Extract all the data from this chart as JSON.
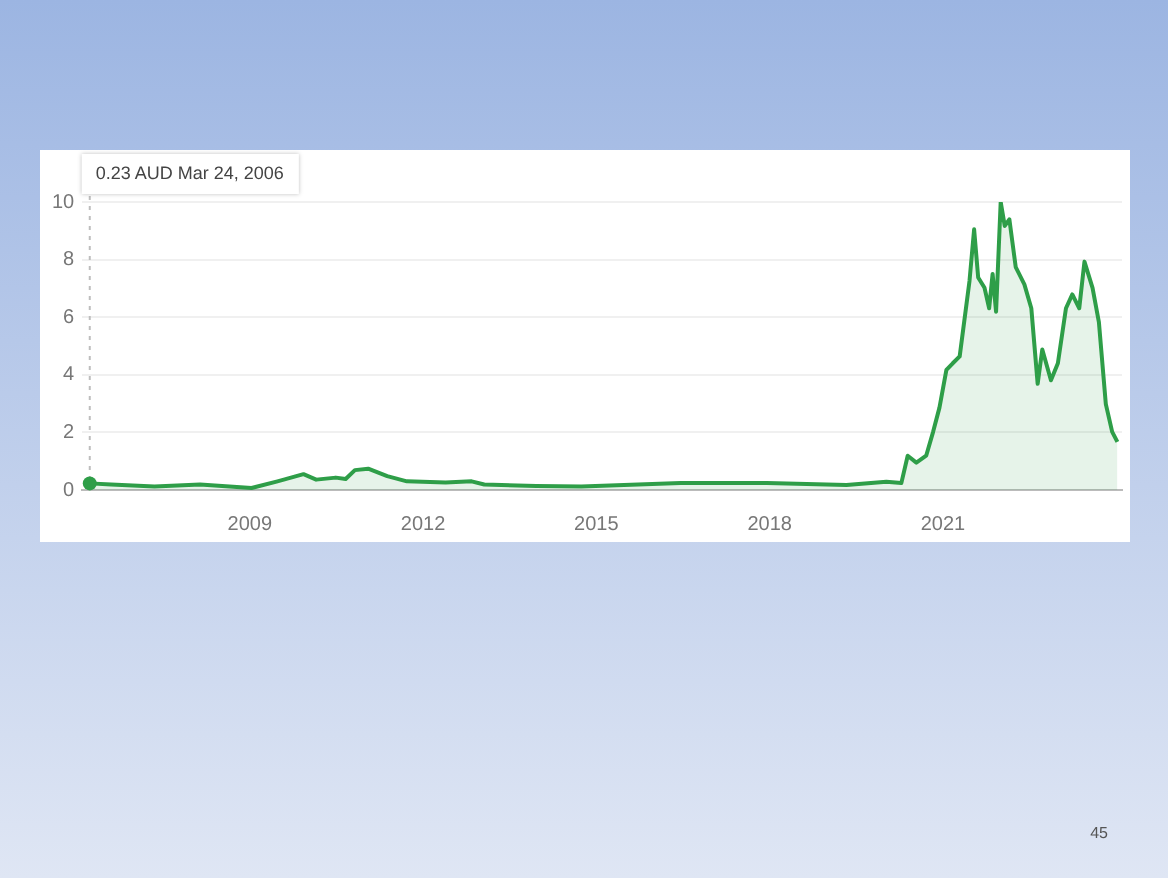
{
  "chart_data": {
    "type": "area",
    "x": [
      2006.23,
      2006.6,
      2007.35,
      2008.14,
      2009.03,
      2009.48,
      2009.93,
      2010.15,
      2010.49,
      2010.66,
      2010.82,
      2011.05,
      2011.38,
      2011.72,
      2012.39,
      2012.84,
      2013.06,
      2013.96,
      2014.74,
      2016.46,
      2017.95,
      2019.33,
      2020.02,
      2020.28,
      2020.39,
      2020.54,
      2020.71,
      2020.83,
      2020.94,
      2021.06,
      2021.17,
      2021.29,
      2021.46,
      2021.54,
      2021.61,
      2021.72,
      2021.8,
      2021.86,
      2021.92,
      2022.0,
      2022.07,
      2022.15,
      2022.26,
      2022.41,
      2022.53,
      2022.64,
      2022.72,
      2022.87,
      2022.99,
      2023.13,
      2023.24,
      2023.36,
      2023.45,
      2023.59,
      2023.7,
      2023.82,
      2023.93,
      2024.02
    ],
    "series": [
      {
        "color": "#2e9e48",
        "values": [
          0.23,
          0.19,
          0.12,
          0.19,
          0.07,
          0.3,
          0.55,
          0.36,
          0.43,
          0.38,
          0.69,
          0.74,
          0.48,
          0.3,
          0.26,
          0.3,
          0.19,
          0.14,
          0.12,
          0.24,
          0.24,
          0.17,
          0.29,
          0.24,
          1.19,
          0.95,
          1.19,
          2.02,
          2.86,
          4.17,
          4.4,
          4.64,
          7.26,
          9.05,
          7.38,
          7.02,
          6.31,
          7.5,
          6.19,
          10.0,
          9.17,
          9.4,
          7.74,
          7.14,
          6.31,
          3.69,
          4.88,
          3.81,
          4.4,
          6.31,
          6.79,
          6.31,
          7.93,
          7.02,
          5.83,
          2.98,
          2.02,
          1.67
        ]
      }
    ],
    "xlim": [
      2006.1,
      2024.1
    ],
    "xticks": [
      2009,
      2012,
      2015,
      2018,
      2021
    ],
    "ylim": [
      0,
      10
    ],
    "yticks": [
      0,
      2,
      4,
      6,
      8,
      10
    ],
    "grid": "y",
    "legend": false,
    "ref_lines": [
      {
        "axis": "x",
        "value": 2006.23,
        "color": "#bdbdbd",
        "line_style": "dotted"
      }
    ],
    "annotations": [
      "0.23 AUD Mar 24, 2006",
      "45"
    ]
  }
}
